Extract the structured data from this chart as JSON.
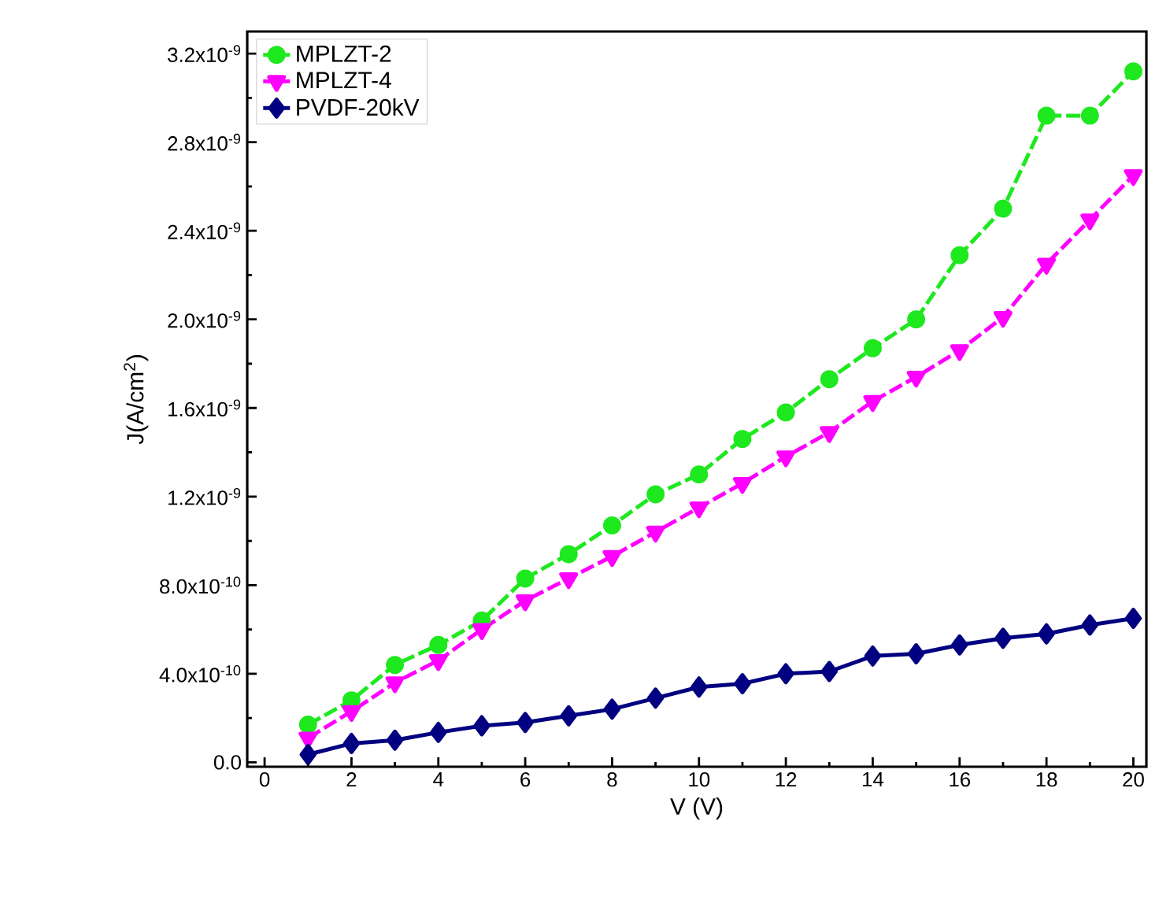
{
  "chart_data": {
    "type": "line",
    "xlabel": "V (V)",
    "ylabel": "J(A/cm$^{2}$)",
    "xlim": [
      -0.4,
      20.3
    ],
    "ylim": [
      -2e-11,
      3.3e-09
    ],
    "xticks": [
      0,
      2,
      4,
      6,
      8,
      10,
      12,
      14,
      16,
      18,
      20
    ],
    "yticks": [
      {
        "value": 0,
        "label": "0.0"
      },
      {
        "value": 4e-10,
        "label": "4.0x10$^{-10}$"
      },
      {
        "value": 8e-10,
        "label": "8.0x10$^{-10}$"
      },
      {
        "value": 1.2e-09,
        "label": "1.2x10$^{-9}$"
      },
      {
        "value": 1.6e-09,
        "label": "1.6x10$^{-9}$"
      },
      {
        "value": 2e-09,
        "label": "2.0x10$^{-9}$"
      },
      {
        "value": 2.4e-09,
        "label": "2.4x10$^{-9}$"
      },
      {
        "value": 2.8e-09,
        "label": "2.8x10$^{-9}$"
      },
      {
        "value": 3.2e-09,
        "label": "3.2x10$^{-9}$"
      }
    ],
    "x": [
      1,
      2,
      3,
      4,
      5,
      6,
      7,
      8,
      9,
      10,
      11,
      12,
      13,
      14,
      15,
      16,
      17,
      18,
      19,
      20
    ],
    "grid": false,
    "legend": "top left",
    "series": [
      {
        "name": "MPLZT-2",
        "color": "#1ee81e",
        "marker": "circle",
        "line_style": "dashed",
        "values": [
          1.7e-10,
          2.8e-10,
          4.4e-10,
          5.3e-10,
          6.4e-10,
          8.3e-10,
          9.4e-10,
          1.07e-09,
          1.21e-09,
          1.3e-09,
          1.46e-09,
          1.58e-09,
          1.73e-09,
          1.87e-09,
          2e-09,
          2.29e-09,
          2.5e-09,
          2.92e-09,
          2.92e-09,
          3.12e-09
        ]
      },
      {
        "name": "MPLZT-4",
        "color": "#ff00ff",
        "marker": "triangle",
        "line_style": "dashed",
        "values": [
          1.1e-10,
          2.3e-10,
          3.6e-10,
          4.6e-10,
          6e-10,
          7.3e-10,
          8.3e-10,
          9.3e-10,
          1.04e-09,
          1.15e-09,
          1.26e-09,
          1.38e-09,
          1.49e-09,
          1.63e-09,
          1.74e-09,
          1.86e-09,
          2.01e-09,
          2.25e-09,
          2.45e-09,
          2.65e-09
        ]
      },
      {
        "name": "PVDF-20kV",
        "color": "#000080",
        "marker": "diamond",
        "line_style": "solid",
        "values": [
          3.5e-11,
          8.5e-11,
          1e-10,
          1.35e-10,
          1.65e-10,
          1.8e-10,
          2.1e-10,
          2.4e-10,
          2.9e-10,
          3.4e-10,
          3.55e-10,
          4e-10,
          4.1e-10,
          4.8e-10,
          4.9e-10,
          5.3e-10,
          5.6e-10,
          5.8e-10,
          6.2e-10,
          6.5e-10
        ]
      }
    ]
  }
}
